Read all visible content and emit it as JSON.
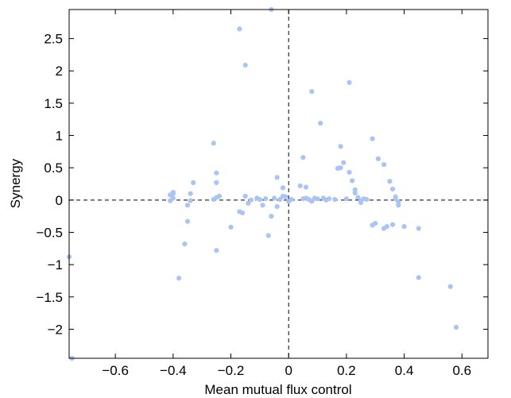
{
  "chart_data": {
    "type": "scatter",
    "xlabel": "Mean mutual flux control",
    "ylabel": "Synergy",
    "xlim": [
      -0.76,
      0.69
    ],
    "ylim": [
      -2.45,
      2.95
    ],
    "xticks": [
      -0.6,
      -0.4,
      -0.2,
      0,
      0.2,
      0.4,
      0.6
    ],
    "xtick_labels": [
      "−0.6",
      "−0.4",
      "−0.2",
      "0",
      "0.2",
      "0.4",
      "0.6"
    ],
    "yticks": [
      -2,
      -1.5,
      -1,
      -0.5,
      0,
      0.5,
      1,
      1.5,
      2,
      2.5
    ],
    "ytick_labels": [
      "−2",
      "−1.5",
      "−1",
      "−0.5",
      "0",
      "0.5",
      "1",
      "1.5",
      "2",
      "2.5"
    ],
    "grid": false,
    "reference_lines": {
      "x": 0,
      "y": 0
    },
    "point_color": "#a9c4f5",
    "series": [
      {
        "points": [
          [
            -0.76,
            -0.88
          ],
          [
            -0.75,
            -2.45
          ],
          [
            -0.4,
            0.12
          ],
          [
            -0.41,
            0.08
          ],
          [
            -0.4,
            0.03
          ],
          [
            -0.41,
            -0.01
          ],
          [
            -0.4,
            0.1
          ],
          [
            -0.38,
            -1.21
          ],
          [
            -0.36,
            -0.68
          ],
          [
            -0.35,
            -0.33
          ],
          [
            -0.35,
            -0.08
          ],
          [
            -0.34,
            0.1
          ],
          [
            -0.33,
            0.27
          ],
          [
            -0.34,
            -0.01
          ],
          [
            -0.26,
            0.88
          ],
          [
            -0.25,
            0.27
          ],
          [
            -0.25,
            0.42
          ],
          [
            -0.25,
            -0.78
          ],
          [
            -0.24,
            0.06
          ],
          [
            -0.26,
            0.01
          ],
          [
            -0.25,
            0.04
          ],
          [
            -0.2,
            -0.42
          ],
          [
            -0.17,
            2.65
          ],
          [
            -0.15,
            2.09
          ],
          [
            -0.16,
            -0.2
          ],
          [
            -0.17,
            -0.18
          ],
          [
            -0.15,
            0.06
          ],
          [
            -0.14,
            -0.05
          ],
          [
            -0.13,
            0.0
          ],
          [
            -0.11,
            0.03
          ],
          [
            -0.09,
            -0.08
          ],
          [
            -0.1,
            0.01
          ],
          [
            -0.08,
            0.02
          ],
          [
            -0.07,
            -0.55
          ],
          [
            -0.06,
            2.95
          ],
          [
            -0.06,
            -0.25
          ],
          [
            -0.05,
            0.03
          ],
          [
            -0.04,
            -0.1
          ],
          [
            -0.03,
            0.01
          ],
          [
            -0.02,
            0.06
          ],
          [
            -0.04,
            0.35
          ],
          [
            -0.02,
            0.19
          ],
          [
            -0.01,
            0.05
          ],
          [
            0.0,
            -0.02
          ],
          [
            0.01,
            0.01
          ],
          [
            0.04,
            0.22
          ],
          [
            0.05,
            0.02
          ],
          [
            0.06,
            0.2
          ],
          [
            0.06,
            0.03
          ],
          [
            0.07,
            0.01
          ],
          [
            0.05,
            0.66
          ],
          [
            0.08,
            1.68
          ],
          [
            0.08,
            -0.02
          ],
          [
            0.09,
            0.03
          ],
          [
            0.1,
            0.02
          ],
          [
            0.11,
            1.19
          ],
          [
            0.12,
            0.03
          ],
          [
            0.13,
            0.0
          ],
          [
            0.14,
            0.02
          ],
          [
            0.16,
            0.01
          ],
          [
            0.17,
            0.49
          ],
          [
            0.18,
            0.83
          ],
          [
            0.18,
            0.5
          ],
          [
            0.19,
            0.58
          ],
          [
            0.2,
            0.02
          ],
          [
            0.21,
            1.82
          ],
          [
            0.21,
            0.43
          ],
          [
            0.22,
            0.3
          ],
          [
            0.23,
            0.16
          ],
          [
            0.23,
            0.11
          ],
          [
            0.24,
            0.04
          ],
          [
            0.25,
            -0.04
          ],
          [
            0.25,
            -0.01
          ],
          [
            0.26,
            0.02
          ],
          [
            0.27,
            0.01
          ],
          [
            0.29,
            0.95
          ],
          [
            0.29,
            -0.39
          ],
          [
            0.3,
            -0.36
          ],
          [
            0.31,
            0.64
          ],
          [
            0.33,
            0.55
          ],
          [
            0.33,
            -0.44
          ],
          [
            0.34,
            -0.41
          ],
          [
            0.35,
            0.29
          ],
          [
            0.36,
            0.17
          ],
          [
            0.36,
            -0.38
          ],
          [
            0.37,
            0.05
          ],
          [
            0.37,
            0.02
          ],
          [
            0.38,
            -0.03
          ],
          [
            0.38,
            -0.08
          ],
          [
            0.4,
            -0.41
          ],
          [
            0.45,
            -0.44
          ],
          [
            0.45,
            -1.2
          ],
          [
            0.56,
            -1.34
          ],
          [
            0.58,
            -1.97
          ]
        ]
      }
    ]
  }
}
